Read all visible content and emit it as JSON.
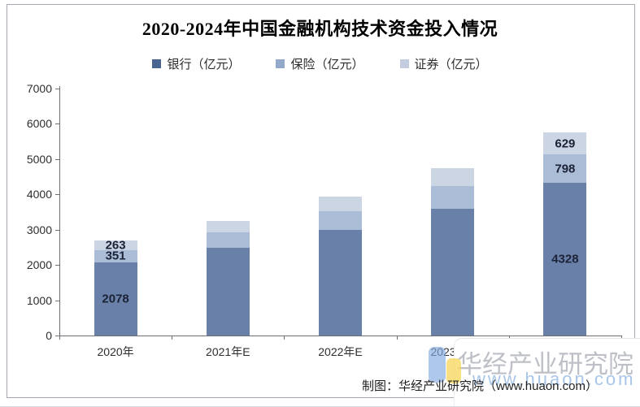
{
  "page": {
    "title": "2020-2024年中国金融机构技术资金投入情况",
    "footer": "制图：华经产业研究院（www.huaon.com）",
    "watermark": {
      "name": "华经产业研究院",
      "url": "www.huaon.com"
    }
  },
  "chart_data": {
    "type": "bar",
    "variant": "stacked",
    "title": "2020-2024年中国金融机构技术资金投入情况",
    "categories": [
      "2020年",
      "2021年E",
      "2022年E",
      "2023年E",
      "2024年E"
    ],
    "series": [
      {
        "name": "银行（亿元）",
        "color": "#6981a9",
        "marker_color": "#4a6492",
        "values": [
          2078,
          2494,
          2993,
          3593,
          4328
        ]
      },
      {
        "name": "保险（亿元）",
        "color": "#aabcd6",
        "marker_color": "#93a9c9",
        "values": [
          351,
          431,
          529,
          650,
          798
        ]
      },
      {
        "name": "证券（亿元）",
        "color": "#ccd5e3",
        "marker_color": "#c2cedf",
        "values": [
          263,
          327,
          407,
          506,
          629
        ]
      }
    ],
    "data_label_categories": [
      0,
      4
    ],
    "data_labels": {
      "2020年": {
        "银行（亿元）": 2078,
        "保险（亿元）": 351,
        "证券（亿元）": 263
      },
      "2024年E": {
        "银行（亿元）": 4328,
        "保险（亿元）": 798,
        "证券（亿元）": 629
      }
    },
    "ylim": [
      0,
      7000
    ],
    "ytick_step": 1000,
    "legend_position": "top",
    "grid": false,
    "note_colors": {
      "watermark_gray": "#a7abb5",
      "watermark_blue": "#a9c6e8",
      "logo_blue": "#82aae2",
      "logo_yellow": "#f6d55a"
    }
  }
}
